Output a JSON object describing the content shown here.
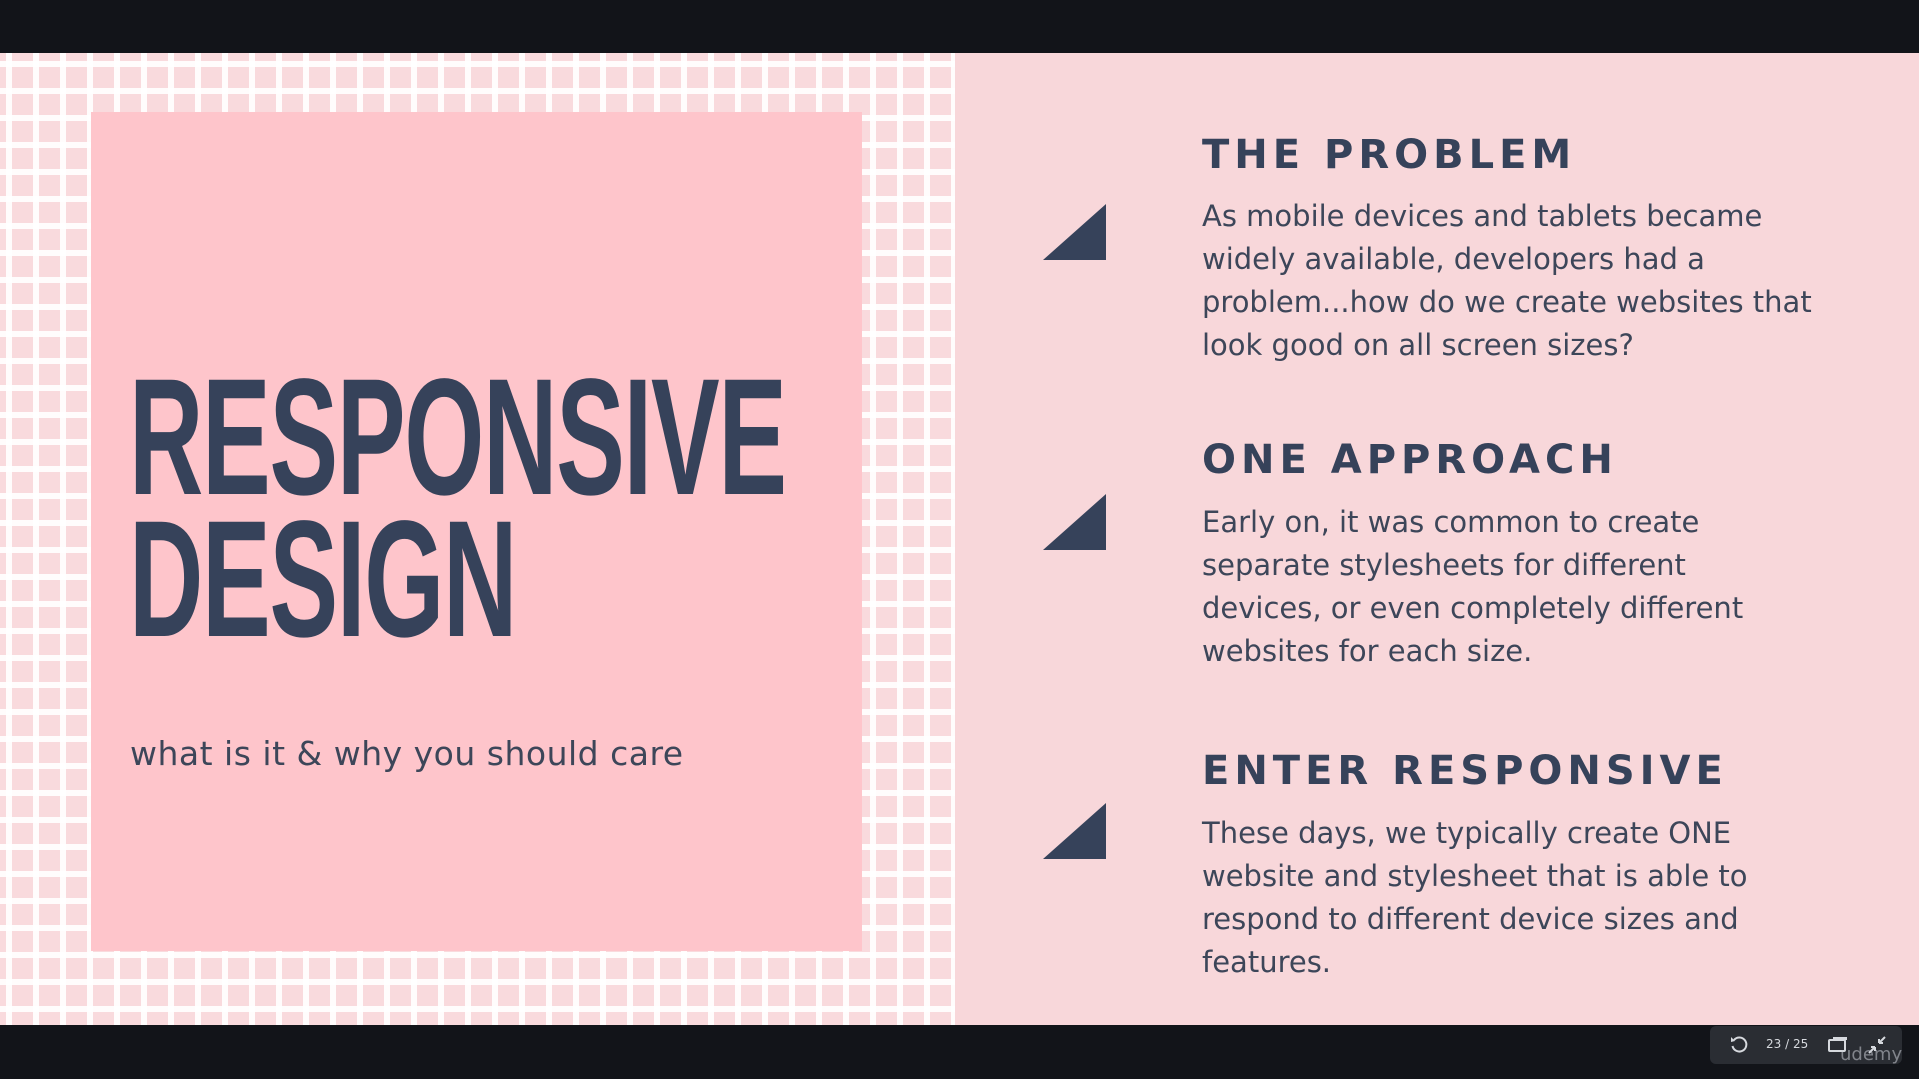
{
  "slide": {
    "title_lines": [
      "RESPONSIVE",
      "DESIGN"
    ],
    "subtitle": "what is it & why you should care",
    "sections": [
      {
        "heading": "THE PROBLEM",
        "body": "As mobile devices and tablets became widely available, developers had a problem...how do we create websites that look good on all screen sizes?"
      },
      {
        "heading": "ONE APPROACH",
        "body": "Early on, it was common to create separate stylesheets for different devices, or even completely different websites for each size."
      },
      {
        "heading": "ENTER RESPONSIVE",
        "body": "These days, we typically create ONE website and stylesheet that is able to respond to different device sizes and features."
      }
    ]
  },
  "player": {
    "page_indicator": "23 / 25",
    "watermark": "udemy",
    "icons": [
      "restart-icon",
      "presenter-view-icon",
      "exit-fullscreen-icon"
    ]
  },
  "colors": {
    "slide_background": "#f8d7da",
    "title_card": "#fec5cb",
    "text_dark": "#36425a",
    "letterbox": "#121419"
  }
}
